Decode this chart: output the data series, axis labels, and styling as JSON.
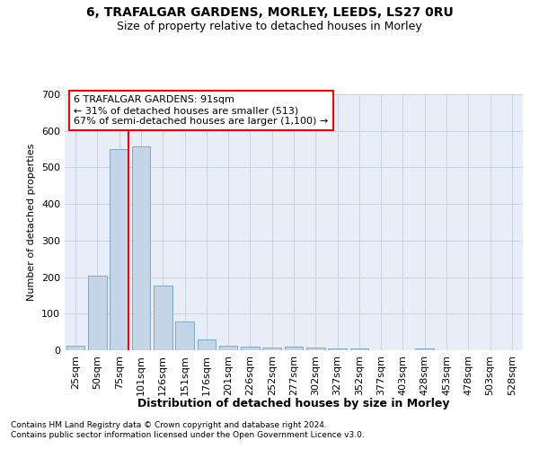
{
  "title1": "6, TRAFALGAR GARDENS, MORLEY, LEEDS, LS27 0RU",
  "title2": "Size of property relative to detached houses in Morley",
  "xlabel": "Distribution of detached houses by size in Morley",
  "ylabel": "Number of detached properties",
  "footnote1": "Contains HM Land Registry data © Crown copyright and database right 2024.",
  "footnote2": "Contains public sector information licensed under the Open Government Licence v3.0.",
  "annotation_title": "6 TRAFALGAR GARDENS: 91sqm",
  "annotation_line2": "← 31% of detached houses are smaller (513)",
  "annotation_line3": "67% of semi-detached houses are larger (1,100) →",
  "bar_color": "#c5d5e8",
  "bar_edge_color": "#6090c0",
  "categories": [
    "25sqm",
    "50sqm",
    "75sqm",
    "101sqm",
    "126sqm",
    "151sqm",
    "176sqm",
    "201sqm",
    "226sqm",
    "252sqm",
    "277sqm",
    "302sqm",
    "327sqm",
    "352sqm",
    "377sqm",
    "403sqm",
    "428sqm",
    "453sqm",
    "478sqm",
    "503sqm",
    "528sqm"
  ],
  "values": [
    13,
    204,
    550,
    557,
    178,
    78,
    29,
    12,
    10,
    8,
    10,
    8,
    5,
    5,
    0,
    0,
    6,
    0,
    0,
    0,
    0
  ],
  "ylim": [
    0,
    700
  ],
  "yticks": [
    0,
    100,
    200,
    300,
    400,
    500,
    600,
    700
  ],
  "vline_bin_index": 2,
  "background_color": "#ffffff",
  "plot_bg_color": "#e8eef8",
  "grid_color": "#c8d4e4"
}
